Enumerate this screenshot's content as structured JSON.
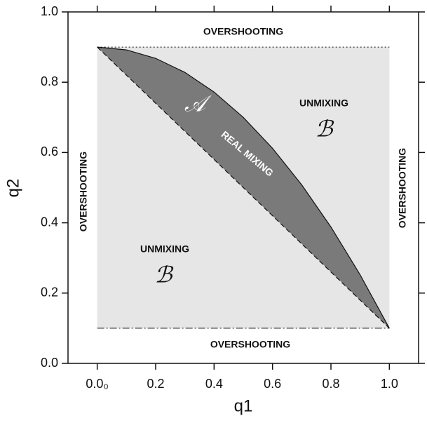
{
  "chart_data": {
    "type": "region",
    "xlabel": "q1",
    "ylabel": "q2",
    "xlim": [
      -0.1,
      1.1
    ],
    "ylim": [
      0,
      1
    ],
    "xticks": [
      {
        "value": 0,
        "label": "0.0₀"
      },
      0.2,
      0.4,
      0.6,
      0.8,
      {
        "value": 1,
        "label": "1.0"
      }
    ],
    "yticks": [
      {
        "value": 0,
        "label": "0.0"
      },
      0.2,
      0.4,
      0.6,
      0.8,
      {
        "value": 1,
        "label": "1.0"
      }
    ],
    "box": {
      "x": [
        0,
        1
      ],
      "y": [
        0.1,
        0.9
      ],
      "color": "#e6e6e6"
    },
    "boundary": {
      "x": [
        0,
        0.1,
        0.2,
        0.3,
        0.4,
        0.5,
        0.6,
        0.7,
        0.8,
        0.9,
        1
      ],
      "y": [
        0.9,
        0.892,
        0.868,
        0.828,
        0.772,
        0.7,
        0.612,
        0.508,
        0.388,
        0.252,
        0.1
      ],
      "color": "#7a7a7a"
    },
    "annotations": [
      "OVERSHOOTING",
      "OVERSHOOTING",
      "OVERSHOOTING",
      "OVERSHOOTING",
      "UNMIXING",
      "ℬ",
      "UNMIXING",
      "ℬ",
      "𝒜",
      "REAL MIXING"
    ]
  }
}
